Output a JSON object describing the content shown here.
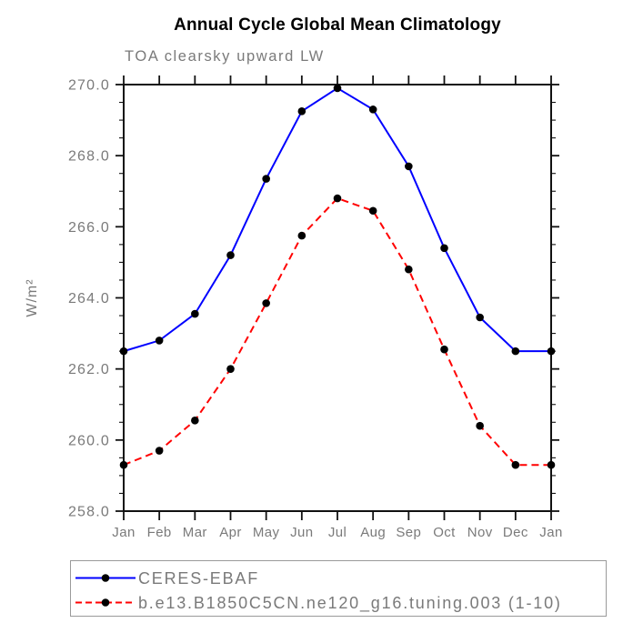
{
  "header": {
    "title": "Annual Cycle Global Mean Climatology",
    "subtitle": "TOA clearsky upward LW"
  },
  "chart_data": {
    "type": "line",
    "x": [
      "Jan",
      "Feb",
      "Mar",
      "Apr",
      "May",
      "Jun",
      "Jul",
      "Aug",
      "Sep",
      "Oct",
      "Nov",
      "Dec",
      "Jan"
    ],
    "ylabel": "W/m²",
    "ylim": [
      258.0,
      270.0
    ],
    "ytick_interval": 2.0,
    "yminor_interval": 0.5,
    "ytick_labels": [
      "258.0",
      "260.0",
      "262.0",
      "264.0",
      "266.0",
      "268.0",
      "270.0"
    ],
    "grid": false,
    "legend_position": "bottom-left-box",
    "series": [
      {
        "name": "CERES-EBAF",
        "color": "#0000ff",
        "line_style": "solid",
        "marker": "filled-circle",
        "marker_color": "#000000",
        "values": [
          262.5,
          262.8,
          263.55,
          265.2,
          267.35,
          269.25,
          269.9,
          269.3,
          267.7,
          265.4,
          263.45,
          262.5,
          262.5
        ]
      },
      {
        "name": "b.e13.B1850C5CN.ne120_g16.tuning.003 (1-10)",
        "color": "#ff0000",
        "line_style": "dashed",
        "marker": "filled-circle",
        "marker_color": "#000000",
        "values": [
          259.3,
          259.7,
          260.55,
          262.0,
          263.85,
          265.75,
          266.8,
          266.45,
          264.8,
          262.55,
          260.4,
          259.3,
          259.3
        ]
      }
    ]
  },
  "colors": {
    "axis_text": "#7a7a7a",
    "frame": "#111111",
    "background": "#ffffff",
    "legend_border": "#9a9a9a"
  }
}
